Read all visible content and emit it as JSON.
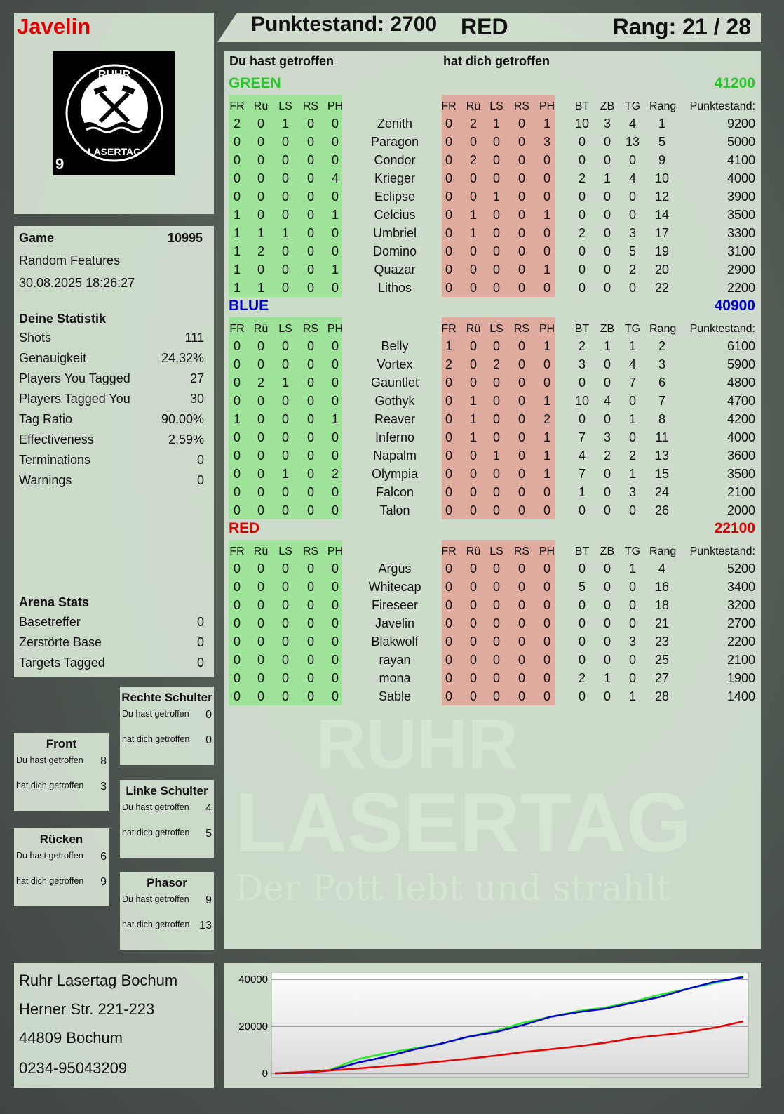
{
  "player": {
    "name": "Javelin",
    "score_label": "Punktestand: 2700",
    "team": "RED",
    "rank_label": "Rang: 21 / 28"
  },
  "logo": {
    "top_text": "RUHR",
    "bottom_text": "LASERTAG",
    "number": "9"
  },
  "watermark": {
    "line1": "RUHR",
    "line2": "LASERTAG",
    "tagline": "Der Pott lebt und strahlt"
  },
  "colors": {
    "green_team": "#22cc22",
    "blue_team": "#0000cc",
    "red_team": "#dd0000",
    "hit_bg": "#9fe39a",
    "got_hit_bg": "#e0aca0"
  },
  "game": {
    "label": "Game",
    "number": "10995",
    "mode": "Random Features",
    "datetime": "30.08.2025 18:26:27"
  },
  "stats": {
    "title": "Deine Statistik",
    "rows": [
      {
        "label": "Shots",
        "value": "111"
      },
      {
        "label": "Genauigkeit",
        "value": "24,32%"
      },
      {
        "label": "Players You Tagged",
        "value": "27"
      },
      {
        "label": "Players Tagged You",
        "value": "30"
      },
      {
        "label": "Tag Ratio",
        "value": "90,00%"
      },
      {
        "label": "Effectiveness",
        "value": "2,59%"
      },
      {
        "label": "Terminations",
        "value": "0"
      },
      {
        "label": "Warnings",
        "value": "0"
      }
    ]
  },
  "arena": {
    "title": "Arena Stats",
    "rows": [
      {
        "label": "Basetreffer",
        "value": "0"
      },
      {
        "label": "Zerstörte Base",
        "value": "0"
      },
      {
        "label": "Targets Tagged",
        "value": "0"
      }
    ]
  },
  "hitzones": [
    {
      "id": "rechte-schulter",
      "title": "Rechte Schulter",
      "you_hit_label": "Du hast getroffen",
      "you_hit": "0",
      "hit_you_label": "hat dich getroffen",
      "hit_you": "0"
    },
    {
      "id": "front",
      "title": "Front",
      "you_hit_label": "Du hast getroffen",
      "you_hit": "8",
      "hit_you_label": "hat dich getroffen",
      "hit_you": "3"
    },
    {
      "id": "linke-schulter",
      "title": "Linke Schulter",
      "you_hit_label": "Du hast getroffen",
      "you_hit": "4",
      "hit_you_label": "hat dich getroffen",
      "hit_you": "5"
    },
    {
      "id": "ruecken",
      "title": "Rücken",
      "you_hit_label": "Du hast getroffen",
      "you_hit": "6",
      "hit_you_label": "hat dich getroffen",
      "hit_you": "9"
    },
    {
      "id": "phasor",
      "title": "Phasor",
      "you_hit_label": "Du hast getroffen",
      "you_hit": "9",
      "hit_you_label": "hat dich getroffen",
      "hit_you": "13"
    }
  ],
  "address": {
    "lines": [
      "Ruhr Lasertag Bochum",
      "Herner Str. 221-223",
      "44809 Bochum",
      "0234-95043209"
    ]
  },
  "table": {
    "you_hit_header": "Du hast getroffen",
    "hit_you_header": "hat dich getroffen",
    "hit_columns": [
      "FR",
      "Rü",
      "LS",
      "RS",
      "PH"
    ],
    "stat_columns": [
      "BT",
      "ZB",
      "TG",
      "Rang",
      "Punktestand:"
    ],
    "teams": [
      {
        "name": "GREEN",
        "score": "41200",
        "color": "#22cc22",
        "players": [
          {
            "name": "Zenith",
            "you_hit": [
              2,
              0,
              1,
              0,
              0
            ],
            "hit_you": [
              0,
              2,
              1,
              0,
              1
            ],
            "stats": [
              10,
              3,
              4,
              1,
              9200
            ]
          },
          {
            "name": "Paragon",
            "you_hit": [
              0,
              0,
              0,
              0,
              0
            ],
            "hit_you": [
              0,
              0,
              0,
              0,
              3
            ],
            "stats": [
              0,
              0,
              13,
              5,
              5000
            ]
          },
          {
            "name": "Condor",
            "you_hit": [
              0,
              0,
              0,
              0,
              0
            ],
            "hit_you": [
              0,
              2,
              0,
              0,
              0
            ],
            "stats": [
              0,
              0,
              0,
              9,
              4100
            ]
          },
          {
            "name": "Krieger",
            "you_hit": [
              0,
              0,
              0,
              0,
              4
            ],
            "hit_you": [
              0,
              0,
              0,
              0,
              0
            ],
            "stats": [
              2,
              1,
              4,
              10,
              4000
            ]
          },
          {
            "name": "Eclipse",
            "you_hit": [
              0,
              0,
              0,
              0,
              0
            ],
            "hit_you": [
              0,
              0,
              1,
              0,
              0
            ],
            "stats": [
              0,
              0,
              0,
              12,
              3900
            ]
          },
          {
            "name": "Celcius",
            "you_hit": [
              1,
              0,
              0,
              0,
              1
            ],
            "hit_you": [
              0,
              1,
              0,
              0,
              1
            ],
            "stats": [
              0,
              0,
              0,
              14,
              3500
            ]
          },
          {
            "name": "Umbriel",
            "you_hit": [
              1,
              1,
              1,
              0,
              0
            ],
            "hit_you": [
              0,
              1,
              0,
              0,
              0
            ],
            "stats": [
              2,
              0,
              3,
              17,
              3300
            ]
          },
          {
            "name": "Domino",
            "you_hit": [
              1,
              2,
              0,
              0,
              0
            ],
            "hit_you": [
              0,
              0,
              0,
              0,
              0
            ],
            "stats": [
              0,
              0,
              5,
              19,
              3100
            ]
          },
          {
            "name": "Quazar",
            "you_hit": [
              1,
              0,
              0,
              0,
              1
            ],
            "hit_you": [
              0,
              0,
              0,
              0,
              1
            ],
            "stats": [
              0,
              0,
              2,
              20,
              2900
            ]
          },
          {
            "name": "Lithos",
            "you_hit": [
              1,
              1,
              0,
              0,
              0
            ],
            "hit_you": [
              0,
              0,
              0,
              0,
              0
            ],
            "stats": [
              0,
              0,
              0,
              22,
              2200
            ]
          }
        ]
      },
      {
        "name": "BLUE",
        "score": "40900",
        "color": "#0000cc",
        "players": [
          {
            "name": "Belly",
            "you_hit": [
              0,
              0,
              0,
              0,
              0
            ],
            "hit_you": [
              1,
              0,
              0,
              0,
              1
            ],
            "stats": [
              2,
              1,
              1,
              2,
              6100
            ]
          },
          {
            "name": "Vortex",
            "you_hit": [
              0,
              0,
              0,
              0,
              0
            ],
            "hit_you": [
              2,
              0,
              2,
              0,
              0
            ],
            "stats": [
              3,
              0,
              4,
              3,
              5900
            ]
          },
          {
            "name": "Gauntlet",
            "you_hit": [
              0,
              2,
              1,
              0,
              0
            ],
            "hit_you": [
              0,
              0,
              0,
              0,
              0
            ],
            "stats": [
              0,
              0,
              7,
              6,
              4800
            ]
          },
          {
            "name": "Gothyk",
            "you_hit": [
              0,
              0,
              0,
              0,
              0
            ],
            "hit_you": [
              0,
              1,
              0,
              0,
              1
            ],
            "stats": [
              10,
              4,
              0,
              7,
              4700
            ]
          },
          {
            "name": "Reaver",
            "you_hit": [
              1,
              0,
              0,
              0,
              1
            ],
            "hit_you": [
              0,
              1,
              0,
              0,
              2
            ],
            "stats": [
              0,
              0,
              1,
              8,
              4200
            ]
          },
          {
            "name": "Inferno",
            "you_hit": [
              0,
              0,
              0,
              0,
              0
            ],
            "hit_you": [
              0,
              1,
              0,
              0,
              1
            ],
            "stats": [
              7,
              3,
              0,
              11,
              4000
            ]
          },
          {
            "name": "Napalm",
            "you_hit": [
              0,
              0,
              0,
              0,
              0
            ],
            "hit_you": [
              0,
              0,
              1,
              0,
              1
            ],
            "stats": [
              4,
              2,
              2,
              13,
              3600
            ]
          },
          {
            "name": "Olympia",
            "you_hit": [
              0,
              0,
              1,
              0,
              2
            ],
            "hit_you": [
              0,
              0,
              0,
              0,
              1
            ],
            "stats": [
              7,
              0,
              1,
              15,
              3500
            ]
          },
          {
            "name": "Falcon",
            "you_hit": [
              0,
              0,
              0,
              0,
              0
            ],
            "hit_you": [
              0,
              0,
              0,
              0,
              0
            ],
            "stats": [
              1,
              0,
              3,
              24,
              2100
            ]
          },
          {
            "name": "Talon",
            "you_hit": [
              0,
              0,
              0,
              0,
              0
            ],
            "hit_you": [
              0,
              0,
              0,
              0,
              0
            ],
            "stats": [
              0,
              0,
              0,
              26,
              2000
            ]
          }
        ]
      },
      {
        "name": "RED",
        "score": "22100",
        "color": "#dd0000",
        "players": [
          {
            "name": "Argus",
            "you_hit": [
              0,
              0,
              0,
              0,
              0
            ],
            "hit_you": [
              0,
              0,
              0,
              0,
              0
            ],
            "stats": [
              0,
              0,
              1,
              4,
              5200
            ]
          },
          {
            "name": "Whitecap",
            "you_hit": [
              0,
              0,
              0,
              0,
              0
            ],
            "hit_you": [
              0,
              0,
              0,
              0,
              0
            ],
            "stats": [
              5,
              0,
              0,
              16,
              3400
            ]
          },
          {
            "name": "Fireseer",
            "you_hit": [
              0,
              0,
              0,
              0,
              0
            ],
            "hit_you": [
              0,
              0,
              0,
              0,
              0
            ],
            "stats": [
              0,
              0,
              0,
              18,
              3200
            ]
          },
          {
            "name": "Javelin",
            "you_hit": [
              0,
              0,
              0,
              0,
              0
            ],
            "hit_you": [
              0,
              0,
              0,
              0,
              0
            ],
            "stats": [
              0,
              0,
              0,
              21,
              2700
            ]
          },
          {
            "name": "Blakwolf",
            "you_hit": [
              0,
              0,
              0,
              0,
              0
            ],
            "hit_you": [
              0,
              0,
              0,
              0,
              0
            ],
            "stats": [
              0,
              0,
              3,
              23,
              2200
            ]
          },
          {
            "name": "rayan",
            "you_hit": [
              0,
              0,
              0,
              0,
              0
            ],
            "hit_you": [
              0,
              0,
              0,
              0,
              0
            ],
            "stats": [
              0,
              0,
              0,
              25,
              2100
            ]
          },
          {
            "name": "mona",
            "you_hit": [
              0,
              0,
              0,
              0,
              0
            ],
            "hit_you": [
              0,
              0,
              0,
              0,
              0
            ],
            "stats": [
              2,
              1,
              0,
              27,
              1900
            ]
          },
          {
            "name": "Sable",
            "you_hit": [
              0,
              0,
              0,
              0,
              0
            ],
            "hit_you": [
              0,
              0,
              0,
              0,
              0
            ],
            "stats": [
              0,
              0,
              1,
              28,
              1400
            ]
          }
        ]
      }
    ]
  },
  "chart_data": {
    "type": "line",
    "ylim": [
      0,
      41500
    ],
    "yticks": [
      0,
      20000,
      40000
    ],
    "ytick_labels": [
      "0",
      "20000",
      "40000"
    ],
    "grid": true,
    "series": [
      {
        "color": "#22ee22",
        "values": [
          0,
          300,
          1500,
          6000,
          8500,
          10500,
          12500,
          15500,
          18000,
          21500,
          24000,
          26500,
          28000,
          30500,
          33500,
          36000,
          38500,
          41200
        ]
      },
      {
        "color": "#0000dd",
        "values": [
          0,
          200,
          1200,
          4500,
          7000,
          10000,
          12500,
          15500,
          17500,
          20500,
          24000,
          26000,
          27500,
          30000,
          32500,
          36000,
          39000,
          40900
        ]
      },
      {
        "color": "#ee0000",
        "values": [
          0,
          500,
          1200,
          2000,
          3000,
          3800,
          5000,
          6200,
          7500,
          9000,
          10200,
          11500,
          13000,
          15000,
          16200,
          17500,
          19500,
          22100
        ]
      }
    ]
  }
}
